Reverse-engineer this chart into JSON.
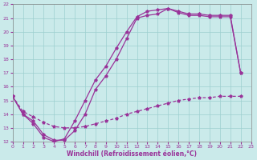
{
  "xlabel": "Windchill (Refroidissement éolien,°C)",
  "xlim": [
    0,
    23
  ],
  "ylim": [
    12,
    22
  ],
  "xticks": [
    0,
    1,
    2,
    3,
    4,
    5,
    6,
    7,
    8,
    9,
    10,
    11,
    12,
    13,
    14,
    15,
    16,
    17,
    18,
    19,
    20,
    21,
    22,
    23
  ],
  "yticks": [
    12,
    13,
    14,
    15,
    16,
    17,
    18,
    19,
    20,
    21,
    22
  ],
  "bg_color": "#caeaea",
  "line_color": "#993399",
  "grid_color": "#9dcfcf",
  "line1_x": [
    0,
    1,
    2,
    3,
    4,
    5,
    6,
    7,
    8,
    9,
    10,
    11,
    12,
    13,
    14,
    15,
    16,
    17,
    18,
    19,
    20,
    21,
    22
  ],
  "line1_y": [
    15.3,
    14.0,
    13.3,
    12.3,
    12.0,
    12.2,
    13.5,
    15.0,
    16.5,
    17.5,
    18.8,
    20.0,
    21.1,
    21.5,
    21.6,
    21.7,
    21.5,
    21.3,
    21.3,
    21.2,
    21.2,
    21.2,
    17.0
  ],
  "line2_x": [
    0,
    1,
    2,
    3,
    4,
    5,
    6,
    7,
    8,
    9,
    10,
    11,
    12,
    13,
    14,
    15,
    16,
    17,
    18,
    19,
    20,
    21,
    22
  ],
  "line2_y": [
    15.3,
    14.0,
    13.5,
    12.5,
    12.1,
    12.1,
    12.8,
    14.0,
    15.8,
    16.8,
    18.0,
    19.5,
    21.0,
    21.2,
    21.3,
    21.7,
    21.4,
    21.2,
    21.2,
    21.1,
    21.1,
    21.1,
    17.0
  ],
  "line3_x": [
    0,
    1,
    2,
    3,
    4,
    5,
    6,
    7,
    8,
    9,
    10,
    11,
    12,
    13,
    14,
    15,
    16,
    17,
    18,
    19,
    20,
    21,
    22
  ],
  "line3_y": [
    15.3,
    14.2,
    13.8,
    13.4,
    13.1,
    13.0,
    13.0,
    13.1,
    13.3,
    13.5,
    13.7,
    14.0,
    14.2,
    14.4,
    14.6,
    14.8,
    15.0,
    15.1,
    15.2,
    15.2,
    15.3,
    15.3,
    15.3
  ]
}
